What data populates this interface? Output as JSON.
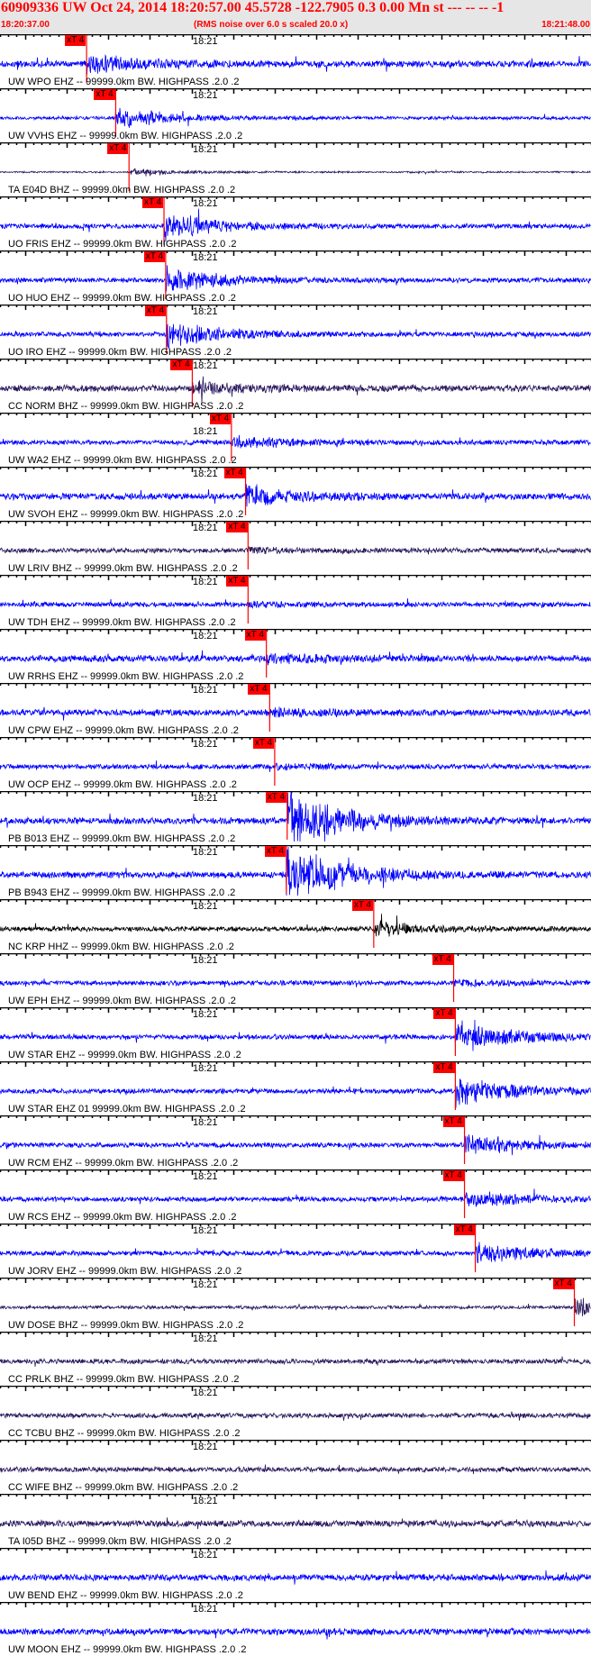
{
  "header": {
    "title": "60909336 UW Oct 24, 2014 18:20:57.00   45.5728 -122.7905  0.3 0.00 Mn st --- -- --   -1",
    "start_time": "18:20:37.00",
    "end_time": "18:21:48.00",
    "rms_note": "(RMS noise over 6.0 s scaled 20.0 x)"
  },
  "minute_label": "18:21",
  "pick_label": "xT 4",
  "colors": {
    "blue": "#0000ff",
    "dark": "#2a1a5e",
    "black": "#000000",
    "pick": "#ff0000",
    "header_text": "#ff0000"
  },
  "time_axis": {
    "start_s": 37,
    "end_s": 108,
    "minute_mark_s": 60
  },
  "channels": [
    {
      "label": "UW WPO EHZ -- 99999.0km BW. HIGHPASS .2.0 .2",
      "color": "blue",
      "pick_s": 47.4
    },
    {
      "label": "UW VVHS EHZ -- 99999.0km BW. HIGHPASS .2.0 .2",
      "color": "blue",
      "pick_s": 50.9
    },
    {
      "label": "TA E04D BHZ -- 99999.0km BW. HIGHPASS .2.0 .2",
      "color": "dark",
      "pick_s": 52.5
    },
    {
      "label": "UO FRIS EHZ -- 99999.0km BW. HIGHPASS .2.0 .2",
      "color": "blue",
      "pick_s": 56.7
    },
    {
      "label": "UO HUO EHZ -- 99999.0km BW. HIGHPASS .2.0 .2",
      "color": "blue",
      "pick_s": 56.9
    },
    {
      "label": "UO IRO EHZ -- 99999.0km BW. HIGHPASS .2.0 .2",
      "color": "blue",
      "pick_s": 57.0
    },
    {
      "label": "CC NORM BHZ -- 99999.0km BW. HIGHPASS .2.0 .2",
      "color": "dark",
      "pick_s": 60.1
    },
    {
      "label": "UW WA2 EHZ -- 99999.0km BW. HIGHPASS .2.0 .2",
      "color": "blue",
      "pick_s": 64.8
    },
    {
      "label": "UW SVOH EHZ -- 99999.0km BW. HIGHPASS .2.0 .2",
      "color": "blue",
      "pick_s": 66.5
    },
    {
      "label": "UW LRIV BHZ -- 99999.0km BW. HIGHPASS .2.0 .2",
      "color": "dark",
      "pick_s": 66.8
    },
    {
      "label": "UW TDH EHZ -- 99999.0km BW. HIGHPASS .2.0 .2",
      "color": "blue",
      "pick_s": 66.8
    },
    {
      "label": "UW RRHS EHZ -- 99999.0km BW. HIGHPASS .2.0 .2",
      "color": "blue",
      "pick_s": 69.0
    },
    {
      "label": "UW CPW EHZ -- 99999.0km BW. HIGHPASS .2.0 .2",
      "color": "blue",
      "pick_s": 69.4
    },
    {
      "label": "UW OCP EHZ -- 99999.0km BW. HIGHPASS .2.0 .2",
      "color": "blue",
      "pick_s": 70.0
    },
    {
      "label": "PB B013 EHZ -- 99999.0km BW. HIGHPASS .2.0 .2",
      "color": "blue",
      "pick_s": 71.5
    },
    {
      "label": "PB B943 EHZ -- 99999.0km BW. HIGHPASS .2.0 .2",
      "color": "blue",
      "pick_s": 71.4
    },
    {
      "label": "NC KRP HHZ -- 99999.0km BW. HIGHPASS .2.0 .2",
      "color": "black",
      "pick_s": 81.9
    },
    {
      "label": "UW EPH EHZ -- 99999.0km BW. HIGHPASS .2.0 .2",
      "color": "blue",
      "pick_s": 91.5
    },
    {
      "label": "UW STAR EHZ -- 99999.0km BW. HIGHPASS .2.0 .2",
      "color": "blue",
      "pick_s": 91.7
    },
    {
      "label": "UW STAR EHZ 01 99999.0km BW. HIGHPASS .2.0 .2",
      "color": "blue",
      "pick_s": 91.7
    },
    {
      "label": "UW RCM EHZ -- 99999.0km BW. HIGHPASS .2.0 .2",
      "color": "blue",
      "pick_s": 92.8
    },
    {
      "label": "UW RCS EHZ -- 99999.0km BW. HIGHPASS .2.0 .2",
      "color": "blue",
      "pick_s": 92.8
    },
    {
      "label": "UW JORV EHZ -- 99999.0km BW. HIGHPASS .2.0 .2",
      "color": "blue",
      "pick_s": 94.1
    },
    {
      "label": "UW DOSE BHZ -- 99999.0km BW. HIGHPASS .2.0 .2",
      "color": "dark",
      "pick_s": 106.0
    },
    {
      "label": "CC PRLK BHZ -- 99999.0km BW. HIGHPASS .2.0 .2",
      "color": "dark",
      "pick_s": null
    },
    {
      "label": "CC TCBU BHZ -- 99999.0km BW. HIGHPASS .2.0 .2",
      "color": "dark",
      "pick_s": null
    },
    {
      "label": "CC WIFE BHZ -- 99999.0km BW. HIGHPASS .2.0 .2",
      "color": "dark",
      "pick_s": null
    },
    {
      "label": "TA I05D BHZ -- 99999.0km BW. HIGHPASS .2.0 .2",
      "color": "dark",
      "pick_s": null
    },
    {
      "label": "UW BEND EHZ -- 99999.0km BW. HIGHPASS .2.0 .2",
      "color": "blue",
      "pick_s": null
    },
    {
      "label": "UW MOON EHZ -- 99999.0km BW. HIGHPASS .2.0 .2",
      "color": "blue",
      "pick_s": null
    }
  ]
}
